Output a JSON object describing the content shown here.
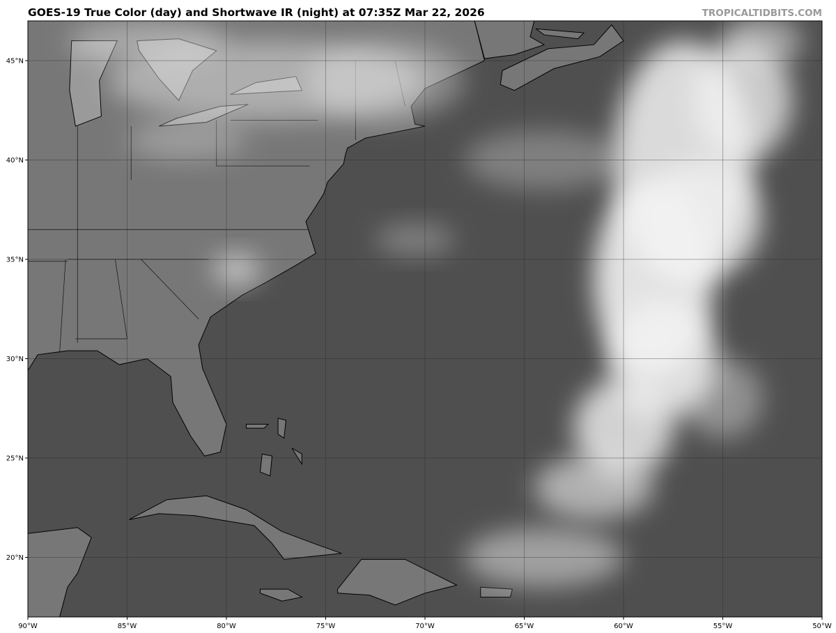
{
  "title": "GOES-19 True Color (day) and Shortwave IR (night) at 07:35Z Mar 22, 2026",
  "credit": "TROPICALTIDBITS.COM",
  "map": {
    "projection": "equirectangular",
    "lon_range": [
      -90,
      -50
    ],
    "lat_range": [
      17,
      47
    ],
    "grid": true,
    "lon_ticks": [
      {
        "value": -90,
        "label": "90°W"
      },
      {
        "value": -85,
        "label": "85°W"
      },
      {
        "value": -80,
        "label": "80°W"
      },
      {
        "value": -75,
        "label": "75°W"
      },
      {
        "value": -70,
        "label": "70°W"
      },
      {
        "value": -65,
        "label": "65°W"
      },
      {
        "value": -60,
        "label": "60°W"
      },
      {
        "value": -55,
        "label": "55°W"
      },
      {
        "value": -50,
        "label": "50°W"
      }
    ],
    "lat_ticks": [
      {
        "value": 45,
        "label": "45°N"
      },
      {
        "value": 40,
        "label": "40°N"
      },
      {
        "value": 35,
        "label": "35°N"
      },
      {
        "value": 30,
        "label": "30°N"
      },
      {
        "value": 25,
        "label": "25°N"
      },
      {
        "value": 20,
        "label": "20°N"
      }
    ],
    "colors": {
      "ocean": "#4f4f4f",
      "land": "#777777",
      "cloud": "#f2f2f2",
      "coastline": "#000000"
    }
  }
}
